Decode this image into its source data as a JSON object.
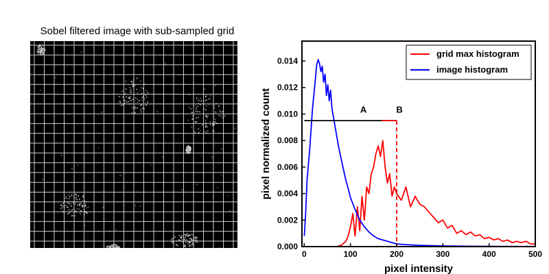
{
  "left_panel": {
    "title": "Sobel filtered image with sub-sampled grid",
    "grid_cells": 20
  },
  "chart_data": {
    "type": "line",
    "xlabel": "pixel intensity",
    "ylabel": "pixel normalized count",
    "xlim": [
      -5,
      500
    ],
    "ylim": [
      0,
      0.0155
    ],
    "xticks": [
      0,
      100,
      200,
      300,
      400,
      500
    ],
    "yticks": [
      0.0,
      0.002,
      0.004,
      0.006,
      0.008,
      0.01,
      0.012,
      0.014
    ],
    "ytick_labels": [
      "0.000",
      "0.002",
      "0.004",
      "0.006",
      "0.008",
      "0.010",
      "0.012",
      "0.014"
    ],
    "legend_position": "top-right",
    "series": [
      {
        "name": "grid max histogram",
        "color": "#ff0000",
        "x": [
          70,
          80,
          90,
          95,
          100,
          105,
          110,
          115,
          120,
          125,
          130,
          135,
          140,
          145,
          150,
          155,
          160,
          165,
          170,
          175,
          180,
          185,
          190,
          195,
          200,
          210,
          220,
          230,
          240,
          250,
          260,
          270,
          280,
          290,
          300,
          310,
          320,
          330,
          340,
          350,
          360,
          370,
          380,
          390,
          400,
          410,
          420,
          430,
          440,
          450,
          460,
          470,
          480,
          490,
          500
        ],
        "y": [
          0.0,
          0.0001,
          0.0004,
          0.0008,
          0.0015,
          0.0025,
          0.0008,
          0.003,
          0.0012,
          0.0038,
          0.002,
          0.0045,
          0.004,
          0.0055,
          0.006,
          0.007,
          0.0076,
          0.0068,
          0.008,
          0.006,
          0.0048,
          0.0055,
          0.0038,
          0.0045,
          0.004,
          0.0035,
          0.0045,
          0.003,
          0.0038,
          0.0032,
          0.003,
          0.0026,
          0.0022,
          0.0018,
          0.002,
          0.0014,
          0.0016,
          0.001,
          0.0012,
          0.0009,
          0.0011,
          0.0008,
          0.0009,
          0.0006,
          0.0007,
          0.0005,
          0.0006,
          0.0004,
          0.0005,
          0.0003,
          0.0004,
          0.0003,
          0.0004,
          0.0002,
          0.0002
        ]
      },
      {
        "name": "image histogram",
        "color": "#0000ff",
        "x": [
          0,
          3,
          6,
          9,
          12,
          15,
          18,
          21,
          24,
          27,
          30,
          33,
          36,
          39,
          42,
          45,
          48,
          51,
          54,
          57,
          60,
          63,
          66,
          69,
          72,
          75,
          80,
          85,
          90,
          95,
          100,
          110,
          120,
          130,
          140,
          150,
          160,
          180,
          200,
          220,
          250,
          300,
          350,
          400,
          450,
          500
        ],
        "y": [
          0.0008,
          0.0025,
          0.005,
          0.0062,
          0.0074,
          0.009,
          0.0105,
          0.0115,
          0.0126,
          0.0137,
          0.0141,
          0.0138,
          0.0132,
          0.0136,
          0.0124,
          0.013,
          0.0114,
          0.0122,
          0.011,
          0.0118,
          0.0104,
          0.0098,
          0.0092,
          0.0086,
          0.008,
          0.0074,
          0.0066,
          0.0058,
          0.005,
          0.0044,
          0.0037,
          0.0028,
          0.002,
          0.0015,
          0.0011,
          0.0008,
          0.0006,
          0.0004,
          0.0002,
          0.00015,
          0.0001,
          5e-05,
          3e-05,
          2e-05,
          1e-05,
          1e-05
        ]
      }
    ],
    "annotations": [
      {
        "label": "A",
        "x": 128,
        "y": 0.0101
      },
      {
        "label": "B",
        "x": 206,
        "y": 0.0101
      }
    ],
    "threshold_line": {
      "y": 0.0095,
      "x_start": 0,
      "x_end": 200
    },
    "peak_segment": {
      "x_start": 168,
      "x_end": 200,
      "y": 0.0095
    },
    "vertical_dashed": {
      "x": 200,
      "y_top": 0.0095
    }
  }
}
